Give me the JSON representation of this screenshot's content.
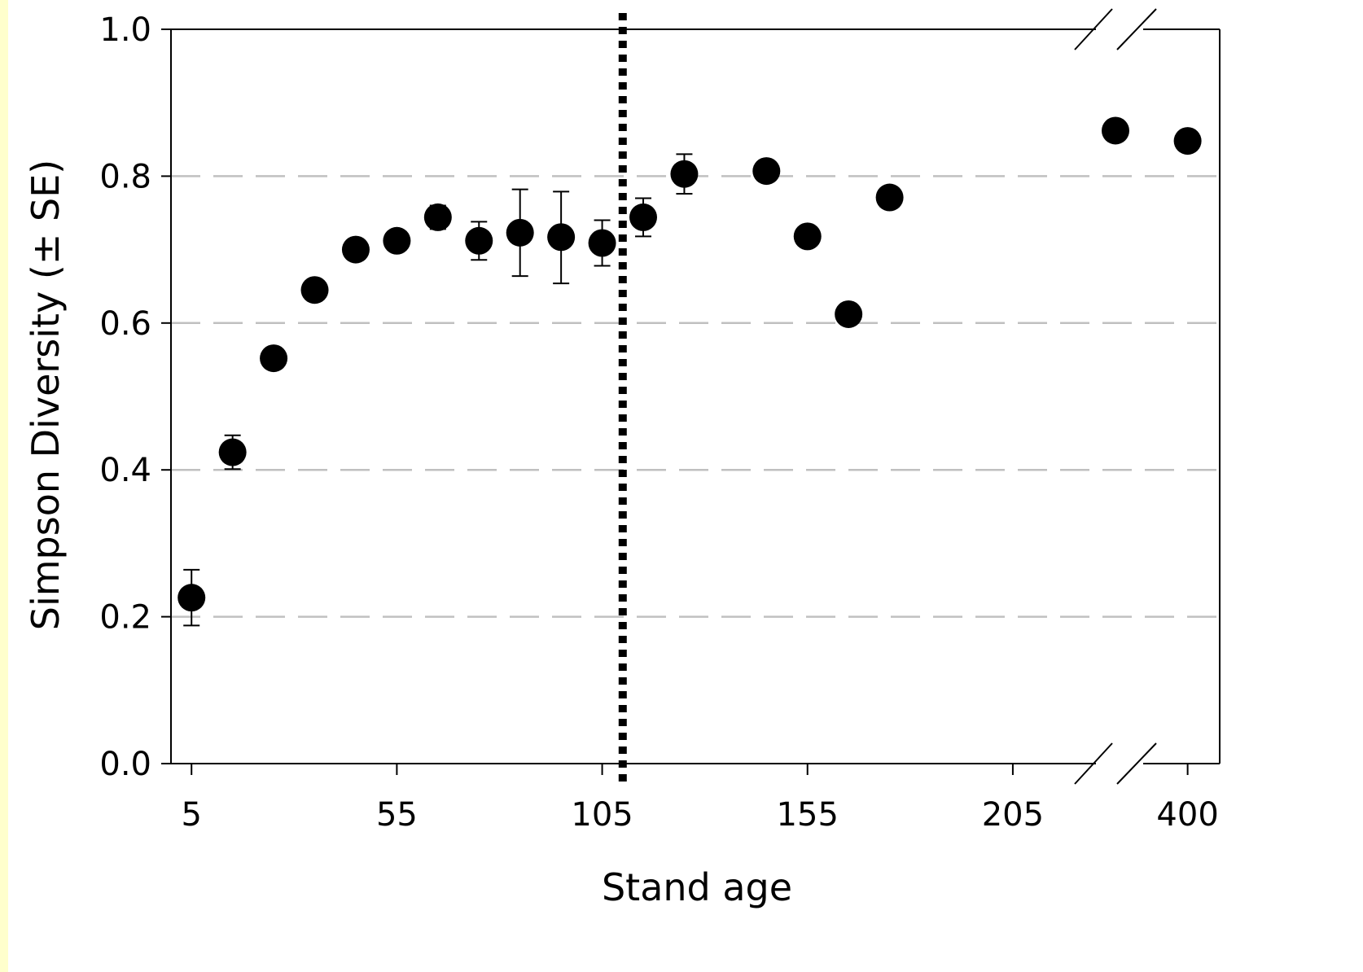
{
  "chart_data": {
    "type": "scatter",
    "title": "",
    "xlabel": "Stand age",
    "ylabel": "Simpson Diversity (± SE)",
    "ylim": [
      0,
      1.0
    ],
    "y_ticks": [
      "0.0",
      "0.2",
      "0.4",
      "0.6",
      "0.8",
      "1.0"
    ],
    "y_tick_values": [
      0,
      0.2,
      0.4,
      0.6,
      0.8,
      1.0
    ],
    "x_ticks": [
      "5",
      "55",
      "105",
      "155",
      "205",
      "400"
    ],
    "x_tick_values": [
      5,
      55,
      105,
      155,
      205,
      400
    ],
    "x_axis_break": true,
    "x_segments": [
      {
        "from": 0,
        "to": 230
      },
      {
        "from": 373,
        "to": 412
      }
    ],
    "grid": "horizontal dashed at 0.2, 0.4, 0.6, 0.8",
    "reference_line": {
      "x": 110,
      "style": "dotted"
    },
    "colors": {
      "marker": "#000000",
      "grid": "#c0c0c0",
      "background": "#ffffcc"
    },
    "points": [
      {
        "x": 5,
        "y": 0.226,
        "se_low": 0.188,
        "se_high": 0.264
      },
      {
        "x": 15,
        "y": 0.424,
        "se_low": 0.401,
        "se_high": 0.447
      },
      {
        "x": 25,
        "y": 0.552
      },
      {
        "x": 35,
        "y": 0.645
      },
      {
        "x": 45,
        "y": 0.7
      },
      {
        "x": 55,
        "y": 0.712
      },
      {
        "x": 65,
        "y": 0.744,
        "se_low": 0.728,
        "se_high": 0.76
      },
      {
        "x": 75,
        "y": 0.712,
        "se_low": 0.686,
        "se_high": 0.738
      },
      {
        "x": 85,
        "y": 0.723,
        "se_low": 0.664,
        "se_high": 0.782
      },
      {
        "x": 95,
        "y": 0.717,
        "se_low": 0.654,
        "se_high": 0.779
      },
      {
        "x": 105,
        "y": 0.709,
        "se_low": 0.678,
        "se_high": 0.74
      },
      {
        "x": 115,
        "y": 0.744,
        "se_low": 0.718,
        "se_high": 0.77
      },
      {
        "x": 125,
        "y": 0.803,
        "se_low": 0.776,
        "se_high": 0.83
      },
      {
        "x": 145,
        "y": 0.807
      },
      {
        "x": 155,
        "y": 0.718
      },
      {
        "x": 165,
        "y": 0.612
      },
      {
        "x": 175,
        "y": 0.771
      },
      {
        "x": 373,
        "y": 0.862
      },
      {
        "x": 400,
        "y": 0.848
      }
    ]
  }
}
